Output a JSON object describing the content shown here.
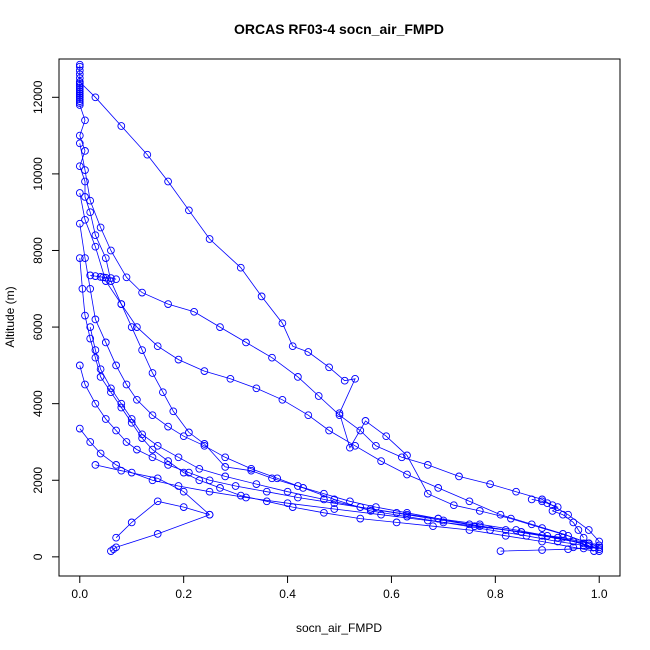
{
  "chart_data": {
    "type": "line",
    "title": "ORCAS RF03-4 socn_air_FMPD",
    "xlabel": "socn_air_FMPD",
    "ylabel": "Altitude (m)",
    "xlim": [
      -0.04,
      1.04
    ],
    "ylim": [
      -500,
      13000
    ],
    "xticks": [
      0.0,
      0.2,
      0.4,
      0.6,
      0.8,
      1.0
    ],
    "xtick_labels": [
      "0.0",
      "0.2",
      "0.4",
      "0.6",
      "0.8",
      "1.0"
    ],
    "yticks": [
      0,
      2000,
      4000,
      6000,
      8000,
      10000,
      12000
    ],
    "ytick_labels": [
      "0",
      "2000",
      "4000",
      "6000",
      "8000",
      "10000",
      "12000"
    ],
    "color": "#0000ff",
    "markers": "open-circle",
    "series": [
      {
        "x": [
          0.0,
          0.0,
          0.0,
          0.0,
          0.0,
          0.0,
          0.0,
          0.0,
          0.0,
          0.0,
          0.0,
          0.0,
          0.0,
          0.0,
          0.0,
          0.0,
          0.0
        ],
        "y": [
          12850,
          12800,
          12700,
          12600,
          12500,
          12400,
          12350,
          12300,
          12250,
          12200,
          12150,
          12100,
          12050,
          12000,
          11950,
          11900,
          11850
        ]
      },
      {
        "x": [
          0.0,
          0.03,
          0.08,
          0.13,
          0.17,
          0.21,
          0.25,
          0.31,
          0.35,
          0.39,
          0.41,
          0.44,
          0.48,
          0.51,
          0.53,
          0.5,
          0.52,
          0.55,
          0.59,
          0.63,
          0.67,
          0.72,
          0.77,
          0.83,
          0.89,
          0.94,
          0.98,
          1.0
        ],
        "y": [
          12400,
          12000,
          11250,
          10500,
          9800,
          9050,
          8300,
          7550,
          6800,
          6100,
          5500,
          5350,
          4950,
          4600,
          4650,
          3750,
          2850,
          3550,
          3150,
          2650,
          1650,
          1350,
          1200,
          1000,
          750,
          550,
          350,
          250
        ]
      },
      {
        "x": [
          0.0,
          0.01,
          0.0,
          0.01,
          0.0,
          0.01,
          0.01,
          0.02,
          0.03,
          0.05,
          0.06,
          0.08,
          0.1,
          0.12,
          0.14,
          0.16,
          0.18,
          0.21,
          0.24,
          0.28,
          0.33,
          0.37,
          0.43,
          0.49,
          0.56,
          0.63,
          0.7,
          0.79,
          0.86,
          0.92,
          0.97,
          1.0
        ],
        "y": [
          11800,
          11400,
          11000,
          10600,
          10200,
          9800,
          9400,
          9000,
          8400,
          7800,
          7200,
          6600,
          6000,
          5400,
          4800,
          4300,
          3800,
          3250,
          2950,
          2350,
          2250,
          2050,
          1800,
          1500,
          1200,
          1050,
          900,
          700,
          550,
          400,
          300,
          200
        ]
      },
      {
        "x": [
          0.0,
          0.01,
          0.02,
          0.04,
          0.06,
          0.09,
          0.12,
          0.17,
          0.22,
          0.27,
          0.32,
          0.37,
          0.42,
          0.46,
          0.5,
          0.54,
          0.57,
          0.62,
          0.67,
          0.73,
          0.79,
          0.84,
          0.89,
          0.94,
          0.98,
          1.0
        ],
        "y": [
          10800,
          10100,
          9300,
          8600,
          8000,
          7300,
          6900,
          6600,
          6400,
          6000,
          5600,
          5200,
          4700,
          4200,
          3700,
          3300,
          2900,
          2600,
          2400,
          2100,
          1900,
          1700,
          1500,
          1100,
          700,
          400
        ]
      },
      {
        "x": [
          0.0,
          0.01,
          0.03,
          0.05,
          0.08,
          0.11,
          0.15,
          0.19,
          0.24,
          0.29,
          0.34,
          0.39,
          0.44,
          0.48,
          0.53,
          0.58,
          0.63,
          0.69,
          0.75,
          0.81,
          0.87,
          0.93,
          0.98,
          1.0
        ],
        "y": [
          9500,
          8800,
          8100,
          7200,
          6600,
          6000,
          5500,
          5150,
          4850,
          4650,
          4400,
          4100,
          3700,
          3300,
          2900,
          2500,
          2150,
          1800,
          1450,
          1100,
          850,
          600,
          350,
          150
        ]
      },
      {
        "x": [
          0.02,
          0.03,
          0.04,
          0.045,
          0.05,
          0.06,
          0.07
        ],
        "y": [
          7350,
          7330,
          7310,
          7300,
          7290,
          7280,
          7250
        ]
      },
      {
        "x": [
          0.0,
          0.01,
          0.02,
          0.03,
          0.05,
          0.07,
          0.09,
          0.11,
          0.14,
          0.17,
          0.2,
          0.24,
          0.28,
          0.33,
          0.38,
          0.42,
          0.47,
          0.52,
          0.57,
          0.63,
          0.69,
          0.75,
          0.82,
          0.89,
          0.95,
          0.99
        ],
        "y": [
          8700,
          7800,
          7000,
          6200,
          5600,
          5000,
          4500,
          4100,
          3700,
          3400,
          3150,
          2900,
          2600,
          2300,
          2050,
          1850,
          1650,
          1450,
          1300,
          1150,
          1000,
          850,
          700,
          550,
          400,
          250
        ]
      },
      {
        "x": [
          0.0,
          0.005,
          0.01,
          0.02,
          0.03,
          0.04,
          0.06,
          0.08,
          0.1,
          0.12,
          0.14,
          0.17,
          0.2,
          0.23,
          0.27,
          0.31,
          0.36,
          0.41,
          0.47,
          0.54,
          0.61,
          0.68,
          0.75,
          0.82,
          0.89,
          0.95,
          0.99
        ],
        "y": [
          7800,
          7000,
          6300,
          5700,
          5200,
          4700,
          4300,
          3900,
          3500,
          3100,
          2800,
          2500,
          2200,
          2000,
          1800,
          1600,
          1450,
          1300,
          1150,
          1000,
          900,
          800,
          700,
          550,
          400,
          250,
          150
        ]
      },
      {
        "x": [
          0.02,
          0.03,
          0.04,
          0.06,
          0.08,
          0.1,
          0.12,
          0.15,
          0.19,
          0.23,
          0.28,
          0.34,
          0.4,
          0.47,
          0.54,
          0.61,
          0.69,
          0.77,
          0.84,
          0.9,
          0.95,
          0.98
        ],
        "y": [
          6000,
          5400,
          4900,
          4400,
          4000,
          3600,
          3200,
          2900,
          2600,
          2300,
          2100,
          1900,
          1700,
          1500,
          1300,
          1150,
          1000,
          850,
          700,
          550,
          400,
          300
        ]
      },
      {
        "x": [
          0.0,
          0.01,
          0.03,
          0.05,
          0.07,
          0.09,
          0.11,
          0.14,
          0.17,
          0.21,
          0.25,
          0.3,
          0.36,
          0.42,
          0.49,
          0.56,
          0.63,
          0.7,
          0.77,
          0.85,
          0.92,
          0.97
        ],
        "y": [
          5000,
          4500,
          4000,
          3600,
          3300,
          3000,
          2800,
          2600,
          2400,
          2200,
          2000,
          1850,
          1700,
          1550,
          1400,
          1250,
          1100,
          950,
          800,
          650,
          500,
          350
        ]
      },
      {
        "x": [
          0.0,
          0.02,
          0.04,
          0.07,
          0.1,
          0.14,
          0.19,
          0.25,
          0.32,
          0.4,
          0.49,
          0.58,
          0.67,
          0.76,
          0.85,
          0.93,
          0.98
        ],
        "y": [
          3350,
          3000,
          2700,
          2400,
          2200,
          2000,
          1850,
          1700,
          1550,
          1400,
          1250,
          1100,
          950,
          800,
          650,
          500,
          350
        ]
      },
      {
        "x": [
          0.03,
          0.08,
          0.15,
          0.2,
          0.25,
          0.2,
          0.15,
          0.1,
          0.07
        ],
        "y": [
          2400,
          2250,
          2050,
          1700,
          1100,
          1300,
          1450,
          900,
          500
        ]
      },
      {
        "x": [
          0.06,
          0.065,
          0.07,
          0.15,
          0.25
        ],
        "y": [
          150,
          200,
          250,
          600,
          1100
        ]
      },
      {
        "x": [
          0.87,
          0.89,
          0.9,
          0.91,
          0.92,
          0.91,
          0.93,
          0.95,
          0.96,
          0.97
        ],
        "y": [
          1500,
          1450,
          1400,
          1350,
          1300,
          1200,
          1100,
          900,
          700,
          500
        ]
      },
      {
        "x": [
          0.81,
          0.89,
          0.94,
          0.97,
          0.99,
          1.0
        ],
        "y": [
          150,
          180,
          200,
          220,
          250,
          300
        ]
      }
    ]
  }
}
